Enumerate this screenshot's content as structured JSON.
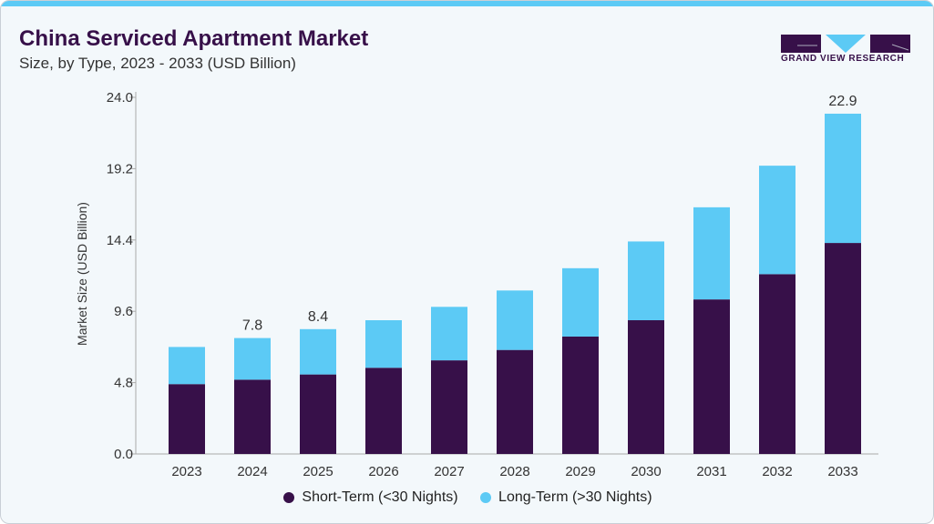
{
  "header": {
    "title": "China Serviced Apartment Market",
    "subtitle": "Size, by Type, 2023 - 2033 (USD Billion)",
    "logo_text": "GRAND VIEW RESEARCH"
  },
  "colors": {
    "short_term": "#371049",
    "long_term": "#5ccaf5",
    "accent": "#5ccaf5"
  },
  "chart_data": {
    "type": "bar",
    "stacked": true,
    "title": "China Serviced Apartment Market",
    "subtitle": "Size, by Type, 2023 - 2033 (USD Billion)",
    "xlabel": "",
    "ylabel": "Market Size (USD Billion)",
    "ylim": [
      0,
      24
    ],
    "yticks": [
      "0.0",
      "4.8",
      "9.6",
      "14.4",
      "19.2",
      "24.0"
    ],
    "grid": false,
    "legend": "bottom",
    "categories": [
      "2023",
      "2024",
      "2025",
      "2026",
      "2027",
      "2028",
      "2029",
      "2030",
      "2031",
      "2032",
      "2033"
    ],
    "series": [
      {
        "name": "Short-Term (<30 Nights)",
        "values": [
          4.7,
          5.0,
          5.35,
          5.8,
          6.3,
          7.0,
          7.9,
          9.0,
          10.4,
          12.1,
          14.2
        ]
      },
      {
        "name": "Long-Term (>30 Nights)",
        "values": [
          2.5,
          2.8,
          3.05,
          3.2,
          3.6,
          4.0,
          4.6,
          5.3,
          6.2,
          7.3,
          8.7
        ]
      }
    ],
    "data_labels": {
      "2024": "7.8",
      "2025": "8.4",
      "2033": "22.9"
    }
  }
}
